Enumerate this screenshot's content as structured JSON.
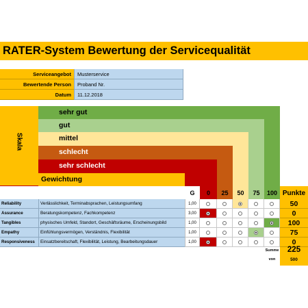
{
  "title": "RATER-System Bewertung der Servicequalität",
  "meta": [
    {
      "label": "Serviceangebot",
      "value": "Musterservice"
    },
    {
      "label": "Bewertende Person",
      "value": "Proband Nr."
    },
    {
      "label": "Datum",
      "value": "11.12.2018"
    }
  ],
  "scale": {
    "axis_label": "Skala",
    "levels": [
      {
        "label": "sehr gut",
        "color": "#70ad47"
      },
      {
        "label": "gut",
        "color": "#a9d08e"
      },
      {
        "label": "mittel",
        "color": "#ffe699"
      },
      {
        "label": "schlecht",
        "color": "#c55a11"
      },
      {
        "label": "sehr schlecht",
        "color": "#c00000"
      }
    ],
    "weight_label": "Gewichtung"
  },
  "header": {
    "g": "G",
    "cols": [
      "0",
      "25",
      "50",
      "75",
      "100"
    ],
    "points": "Punkte"
  },
  "rows": [
    {
      "name": "Reliability",
      "desc": "Verlässlichkeit, Terminabsprachen, Leistungsumfang",
      "weight": "1,00",
      "selected": 2,
      "points": "50"
    },
    {
      "name": "Assurance",
      "desc": "Beratungskompetenz, Fachkompetenz",
      "weight": "3,00",
      "selected": 0,
      "points": "0"
    },
    {
      "name": "Tangibles",
      "desc": "physisches Umfeld, Standort, Geschäftsräume, Erscheinungsbild",
      "weight": "1,00",
      "selected": 4,
      "points": "100"
    },
    {
      "name": "Empathy",
      "desc": "Einfühlungsvermögen, Verständnis, Flexibilität",
      "weight": "1,00",
      "selected": 3,
      "points": "75"
    },
    {
      "name": "Responsiveness",
      "desc": "Einsatzbereitschaft, Flexibilität, Leistung, Bearbeitungsdauer",
      "weight": "1,00",
      "selected": 0,
      "points": "0"
    }
  ],
  "summary": {
    "sum_label": "Summe",
    "sum_value": "225",
    "of_label": "von",
    "of_value": "500"
  }
}
